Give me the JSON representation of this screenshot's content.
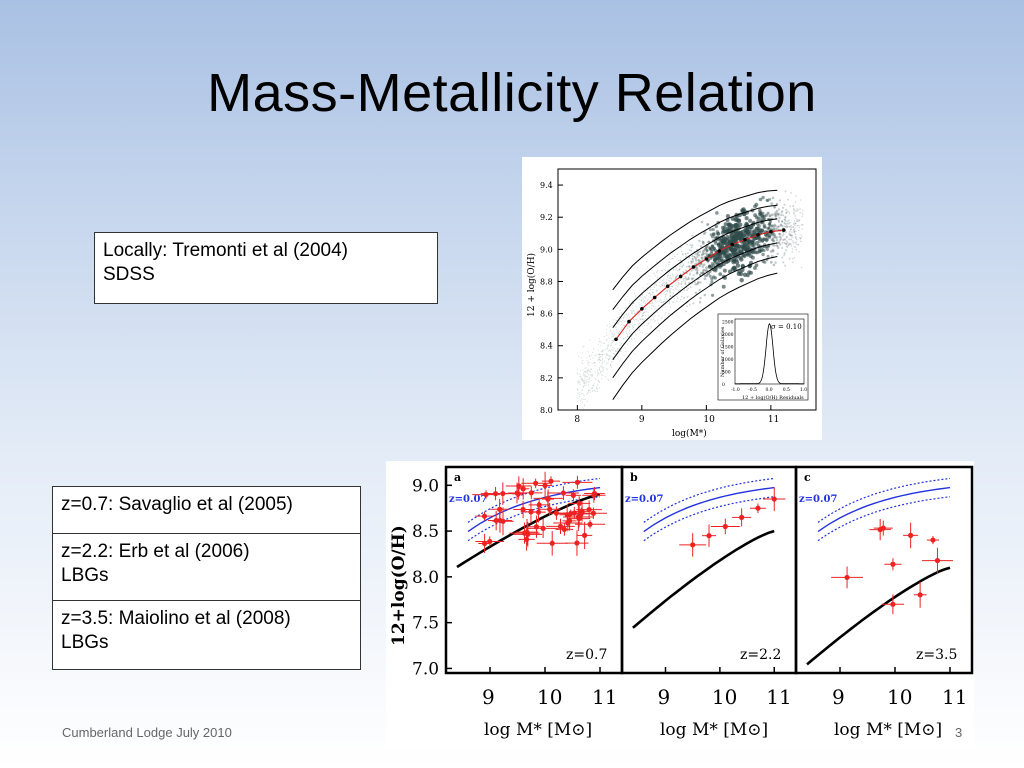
{
  "slide": {
    "title": "Mass-Metallicity Relation",
    "footer_left": "Cumberland Lodge July 2010",
    "page_number": "3"
  },
  "boxes": {
    "local": {
      "line1": "Locally: Tremonti et al (2004)",
      "line2": "SDSS"
    },
    "z07": {
      "line1": "z=0.7: Savaglio et al (2005)"
    },
    "z22": {
      "line1": "z=2.2: Erb et al (2006)",
      "line2": "LBGs"
    },
    "z35": {
      "line1": "z=3.5: Maiolino et al (2008)",
      "line2": "LBGs"
    }
  },
  "chart_data": [
    {
      "type": "scatter",
      "xlabel": "log(M*)",
      "ylabel": "12 + log(O/H)",
      "xlim": [
        7.7,
        11.7
      ],
      "ylim": [
        8.0,
        9.5
      ],
      "xticks": [
        "8",
        "9",
        "10",
        "11"
      ],
      "yticks": [
        "8.0",
        "8.2",
        "8.4",
        "8.6",
        "8.8",
        "9.0",
        "9.2",
        "9.4"
      ],
      "series": [
        {
          "name": "median",
          "x": [
            8.6,
            8.8,
            9.0,
            9.2,
            9.4,
            9.6,
            9.8,
            10.0,
            10.2,
            10.4,
            10.6,
            10.8,
            11.0,
            11.2
          ],
          "values": [
            8.44,
            8.55,
            8.63,
            8.7,
            8.77,
            8.83,
            8.89,
            8.94,
            8.99,
            9.03,
            9.06,
            9.09,
            9.11,
            9.12
          ]
        }
      ],
      "inset": {
        "xlabel": "12 + log(O/H) Residuals",
        "ylabel": "Number of Galaxies",
        "annotation": "σ = 0.10",
        "xticks": [
          "-1.0",
          "-0.5",
          "0.0",
          "0.5",
          "1.0"
        ],
        "yticks": [
          "0",
          "500",
          "1000",
          "1500",
          "2000",
          "2500"
        ]
      }
    },
    {
      "type": "line",
      "panels": [
        {
          "panel": "a",
          "label": "z=0.7",
          "local_label": "z=0.07"
        },
        {
          "panel": "b",
          "label": "z=2.2",
          "local_label": "z=0.07"
        },
        {
          "panel": "c",
          "label": "z=3.5",
          "local_label": "z=0.07"
        }
      ],
      "ylabel": "12+log(O/H)",
      "xlabel": "log M* [M⊙]",
      "xticks": [
        "9",
        "10",
        "11"
      ],
      "yticks": [
        "7.0",
        "7.5",
        "8.0",
        "8.5",
        "9.0"
      ],
      "xlim": [
        8.2,
        11.4
      ],
      "ylim": [
        6.95,
        9.2
      ]
    }
  ]
}
